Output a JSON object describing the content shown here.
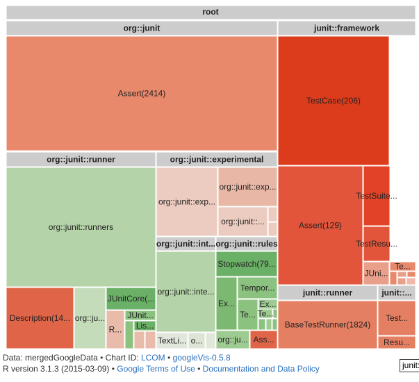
{
  "chart_data": {
    "type": "treemap",
    "root": "root",
    "metric": "LCOM",
    "groups": [
      {
        "id": "org-junit",
        "label": "org::junit"
      },
      {
        "id": "junit-framework",
        "label": "junit::framework"
      },
      {
        "id": "org-junit-runner",
        "label": "org::junit::runner"
      },
      {
        "id": "org-junit-experimental",
        "label": "org::junit::experimental"
      },
      {
        "id": "org-junit-internal",
        "label": "org::junit::int..."
      },
      {
        "id": "org-junit-rules",
        "label": "org::junit::rules"
      },
      {
        "id": "junit-runner",
        "label": "junit::runner"
      },
      {
        "id": "junit-extra",
        "label": "junit::..."
      }
    ],
    "leaves": [
      {
        "label": "Assert(2414)",
        "group": "org-junit",
        "color": "#e8896c"
      },
      {
        "label": "TestCase(206)",
        "group": "junit-framework",
        "color": "#dd3c1c"
      },
      {
        "label": "Assert(129)",
        "group": "junit-framework",
        "color": "#e3553a"
      },
      {
        "label": "TestSuite...",
        "group": "junit-framework",
        "color": "#e24326"
      },
      {
        "label": "TestResu...",
        "group": "junit-framework",
        "color": "#e3553a"
      },
      {
        "label": "JUni...",
        "group": "junit-framework",
        "color": "#e9a08a"
      },
      {
        "label": "Te...",
        "group": "junit-framework",
        "color": "#e8896c"
      },
      {
        "label": "org::junit::runners",
        "group": "org-junit-runner",
        "color": "#b4d3a8"
      },
      {
        "label": "Description(14...",
        "group": "org-junit-runner",
        "color": "#e06548"
      },
      {
        "label": "org::ju...",
        "group": "org-junit-runner",
        "color": "#c5dcbb"
      },
      {
        "label": "JUnitCore(...",
        "group": "org-junit-runner",
        "color": "#6bb067"
      },
      {
        "label": "R...",
        "group": "org-junit-runner",
        "color": "#e9bbab"
      },
      {
        "label": "JUnit...",
        "group": "org-junit-runner",
        "color": "#8cc280"
      },
      {
        "label": "Lis...",
        "group": "org-junit-runner",
        "color": "#6bb067"
      },
      {
        "label": "org::junit::exp...",
        "group": "org-junit-experimental",
        "color": "#ecccc0"
      },
      {
        "label": "org::junit::exp...",
        "group": "org-junit-experimental",
        "color": "#e9b7a6"
      },
      {
        "label": "org::junit::...",
        "group": "org-junit-experimental",
        "color": "#ecccc0"
      },
      {
        "label": "org::junit::inte...",
        "group": "org-junit-internal",
        "color": "#b4d3a8"
      },
      {
        "label": "TextLi...",
        "group": "org-junit-internal",
        "color": "#e2e7dc"
      },
      {
        "label": "o...",
        "group": "org-junit-internal",
        "color": "#dde6d6"
      },
      {
        "label": "Stopwatch(79...",
        "group": "org-junit-rules",
        "color": "#6bb067"
      },
      {
        "label": "Ex...",
        "group": "org-junit-rules",
        "color": "#7cb872"
      },
      {
        "label": "Tempor...",
        "group": "org-junit-rules",
        "color": "#8cc280"
      },
      {
        "label": "Te...",
        "group": "org-junit-rules",
        "color": "#8cc280"
      },
      {
        "label": "Ex...",
        "group": "org-junit-rules",
        "color": "#9ecb92"
      },
      {
        "label": "Te...",
        "group": "org-junit-rules",
        "color": "#9ecb92"
      },
      {
        "label": "org::ju...",
        "group": "org-junit-rules",
        "color": "#9ecb92"
      },
      {
        "label": "Ass...",
        "group": "org-junit-rules",
        "color": "#e06548"
      },
      {
        "label": "BaseTestRunner(1824)",
        "group": "junit-runner",
        "color": "#e47f62"
      },
      {
        "label": "Test...",
        "group": "junit-extra",
        "color": "#e47f62"
      },
      {
        "label": "Resu...",
        "group": "junit-extra",
        "color": "#e47f62"
      }
    ]
  },
  "footer": {
    "line1_prefix": "Data: mergedGoogleData • Chart ID: ",
    "chart_id_link": "LCOM",
    "line1_sep": " • ",
    "version_link": "googleVis-0.5.8",
    "line2_prefix": "R version 3.1.3 (2015-03-09) • ",
    "terms_link": "Google Terms of Use",
    "line2_sep": " • ",
    "policy_link": "Documentation and Data Policy"
  },
  "tooltip": {
    "text": "junit::"
  },
  "colors": {
    "header": "#cccccc",
    "border": "#ffffff",
    "text": "#222222",
    "link": "#2a6fbd"
  }
}
